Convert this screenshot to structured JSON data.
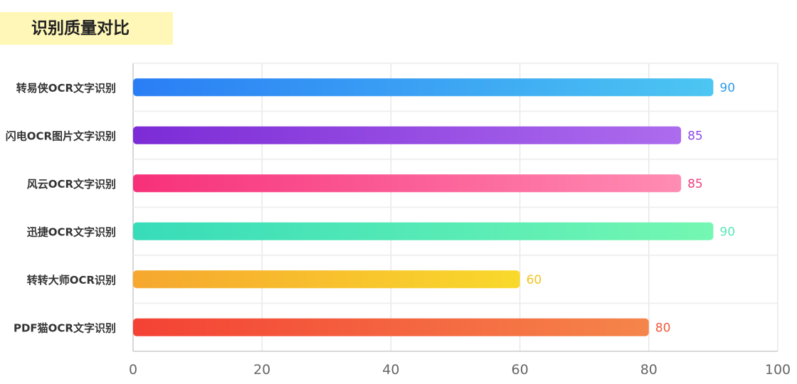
{
  "header": {
    "title": "识别质量对比"
  },
  "chart_data": {
    "type": "bar",
    "orientation": "horizontal",
    "title": "识别质量对比",
    "xlabel": "",
    "ylabel": "",
    "xlim": [
      0,
      100
    ],
    "x_ticks": [
      "0",
      "20",
      "40",
      "60",
      "80",
      "100"
    ],
    "grid": true,
    "categories": [
      "转易侠OCR文字识别",
      "闪电OCR图片文字识别",
      "风云OCR文字识别",
      "迅捷OCR文字识别",
      "转转大师OCR识别",
      "PDF猫OCR文字识别"
    ],
    "values": [
      90,
      85,
      85,
      90,
      60,
      80
    ],
    "bar_gradients": [
      [
        "#2a7ef5",
        "#4cc6f2"
      ],
      [
        "#7c2bd6",
        "#ad6cee"
      ],
      [
        "#f7307a",
        "#ff8cb3"
      ],
      [
        "#37dcb9",
        "#74f7b2"
      ],
      [
        "#f6a72f",
        "#f9d92c"
      ],
      [
        "#f44235",
        "#f5854a"
      ]
    ],
    "value_label_colors": [
      "#2f9be8",
      "#8d48e6",
      "#ee3d7c",
      "#58e8b6",
      "#f3c21e",
      "#f0593a"
    ]
  }
}
